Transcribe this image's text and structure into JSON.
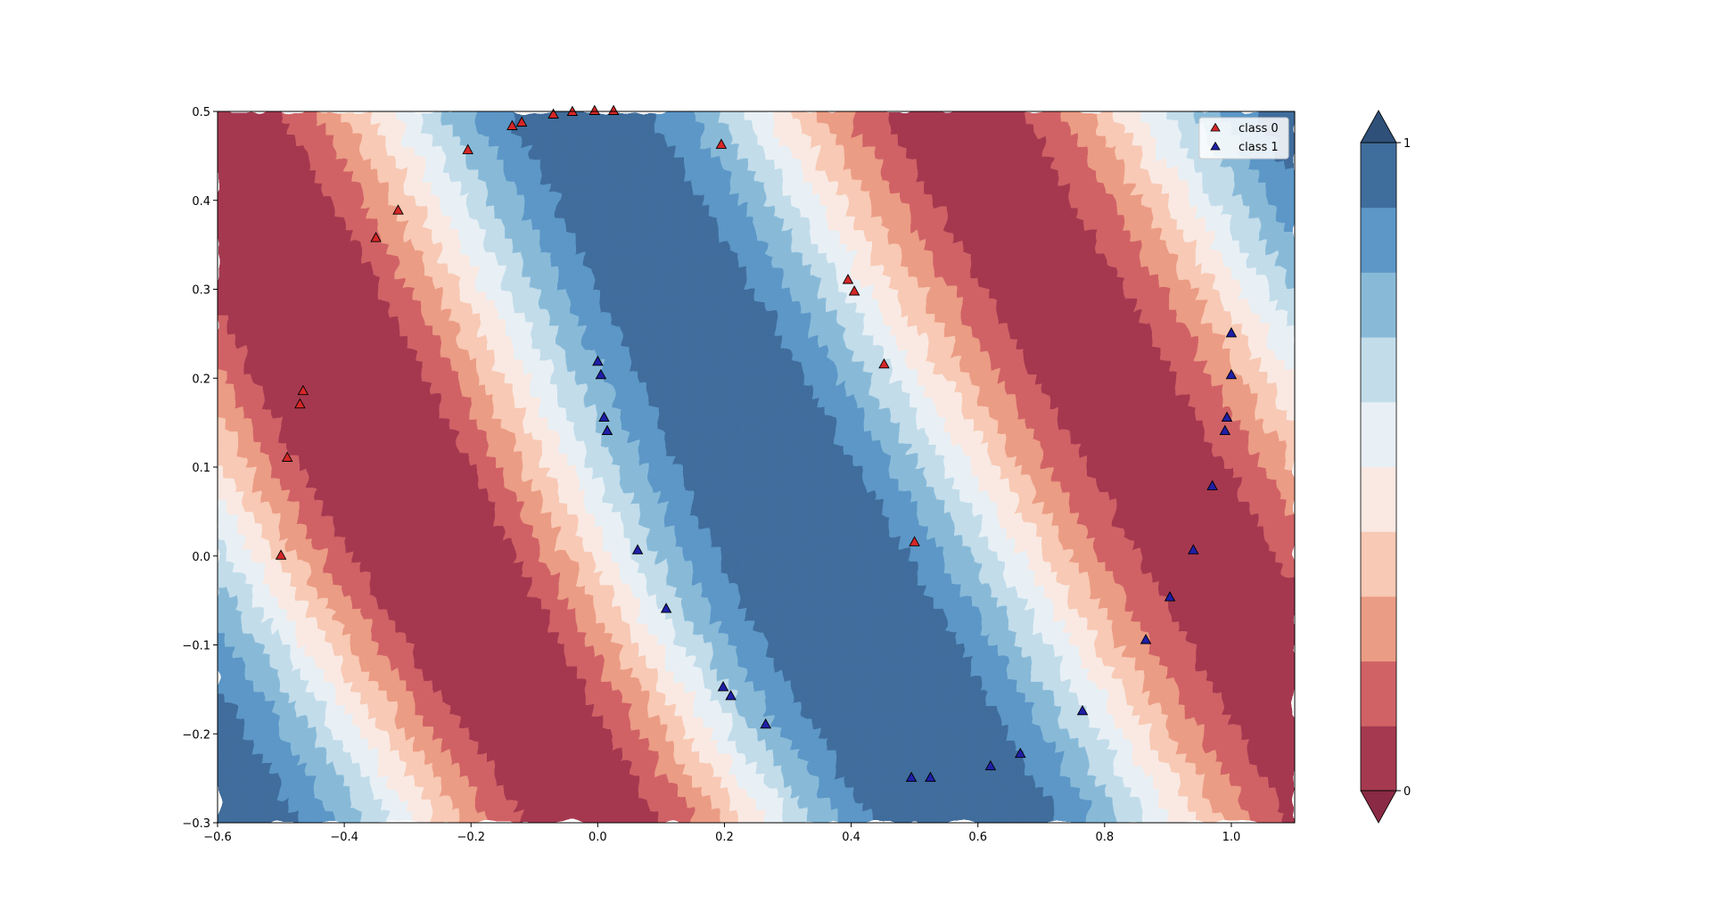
{
  "chart_data": {
    "type": "contourf+scatter",
    "title": "",
    "xlabel": "",
    "ylabel": "",
    "xlim": [
      -0.6,
      1.1
    ],
    "ylim": [
      -0.3,
      0.5
    ],
    "x_ticks": [
      -0.6,
      -0.4,
      -0.2,
      0.0,
      0.2,
      0.4,
      0.6,
      0.8,
      1.0
    ],
    "x_tick_labels": [
      "−0.6",
      "−0.4",
      "−0.2",
      "0.0",
      "0.2",
      "0.4",
      "0.6",
      "0.8",
      "1.0"
    ],
    "y_ticks": [
      -0.3,
      -0.2,
      -0.1,
      0.0,
      0.1,
      0.2,
      0.3,
      0.4,
      0.5
    ],
    "y_tick_labels": [
      "−0.3",
      "−0.2",
      "−0.1",
      "0.0",
      "0.1",
      "0.2",
      "0.3",
      "0.4",
      "0.5"
    ],
    "grid": false,
    "legend": {
      "position": "top-right",
      "entries": [
        "class 0",
        "class 1"
      ]
    },
    "contour": {
      "levels": [
        0.0,
        0.1,
        0.2,
        0.3,
        0.4,
        0.5,
        0.6,
        0.7,
        0.8,
        0.9,
        1.0
      ],
      "colors": [
        "#a5394f",
        "#d06266",
        "#eb9c84",
        "#f8c9b4",
        "#f9e9e2",
        "#e8f0f5",
        "#c2dcea",
        "#88bad8",
        "#5c97c7",
        "#3f6d9c"
      ],
      "extend": "both",
      "under_color": "#8a2a44",
      "over_color": "#2f5078",
      "colormap": "RdBu"
    },
    "colorbar": {
      "ticks": [
        0,
        1
      ],
      "tick_labels": [
        "0",
        "1"
      ],
      "extend": "both"
    },
    "series": [
      {
        "name": "class 0",
        "marker": "triangle",
        "color": "#d62728",
        "points": [
          [
            -0.5,
            0.0
          ],
          [
            -0.49,
            0.11
          ],
          [
            -0.47,
            0.17
          ],
          [
            -0.465,
            0.185
          ],
          [
            -0.35,
            0.357
          ],
          [
            -0.315,
            0.388
          ],
          [
            -0.205,
            0.456
          ],
          [
            -0.135,
            0.483
          ],
          [
            -0.12,
            0.487
          ],
          [
            -0.07,
            0.496
          ],
          [
            -0.04,
            0.499
          ],
          [
            -0.005,
            0.5
          ],
          [
            0.025,
            0.5
          ],
          [
            0.195,
            0.462
          ],
          [
            0.395,
            0.31
          ],
          [
            0.405,
            0.297
          ],
          [
            0.452,
            0.215
          ],
          [
            0.5,
            0.015
          ]
        ]
      },
      {
        "name": "class 1",
        "marker": "triangle",
        "color": "#1f1fa8",
        "points": [
          [
            0.0,
            0.218
          ],
          [
            0.005,
            0.203
          ],
          [
            0.01,
            0.155
          ],
          [
            0.015,
            0.14
          ],
          [
            0.063,
            0.006
          ],
          [
            0.108,
            -0.06
          ],
          [
            0.198,
            -0.148
          ],
          [
            0.21,
            -0.158
          ],
          [
            0.265,
            -0.19
          ],
          [
            0.495,
            -0.25
          ],
          [
            0.525,
            -0.25
          ],
          [
            0.62,
            -0.237
          ],
          [
            0.667,
            -0.223
          ],
          [
            0.765,
            -0.175
          ],
          [
            0.865,
            -0.095
          ],
          [
            0.903,
            -0.047
          ],
          [
            0.94,
            0.006
          ],
          [
            0.97,
            0.078
          ],
          [
            0.99,
            0.14
          ],
          [
            0.993,
            0.155
          ],
          [
            1.0,
            0.203
          ],
          [
            1.0,
            0.25
          ]
        ]
      }
    ]
  }
}
